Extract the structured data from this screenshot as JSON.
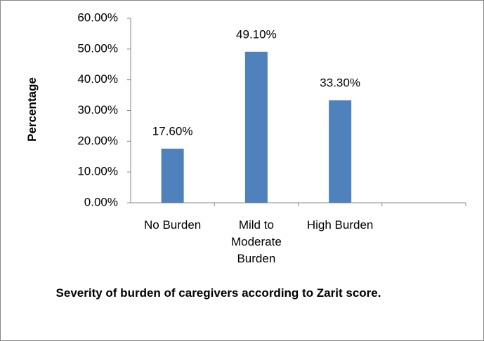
{
  "chart_data": {
    "type": "bar",
    "title": "Severity of burden of caregivers according to Zarit score.",
    "y_label": "Percentage",
    "categories": [
      "No Burden",
      "Mild to Moderate Burden",
      "High Burden",
      null
    ],
    "values": [
      17.6,
      49.1,
      33.3,
      null
    ],
    "value_labels": [
      "17.60%",
      "49.10%",
      "33.30%",
      null
    ],
    "color": "#4f81bd",
    "ylim": [
      0,
      60
    ],
    "yticks": [
      {
        "value": 0,
        "label": "0.00%"
      },
      {
        "value": 10,
        "label": "10.00%"
      },
      {
        "value": 20,
        "label": "20.00%"
      },
      {
        "value": 30,
        "label": "30.00%"
      },
      {
        "value": 40,
        "label": "40.00%"
      },
      {
        "value": 50,
        "label": "50.00%"
      },
      {
        "value": 60,
        "label": "60.00%"
      }
    ],
    "grid": false
  }
}
